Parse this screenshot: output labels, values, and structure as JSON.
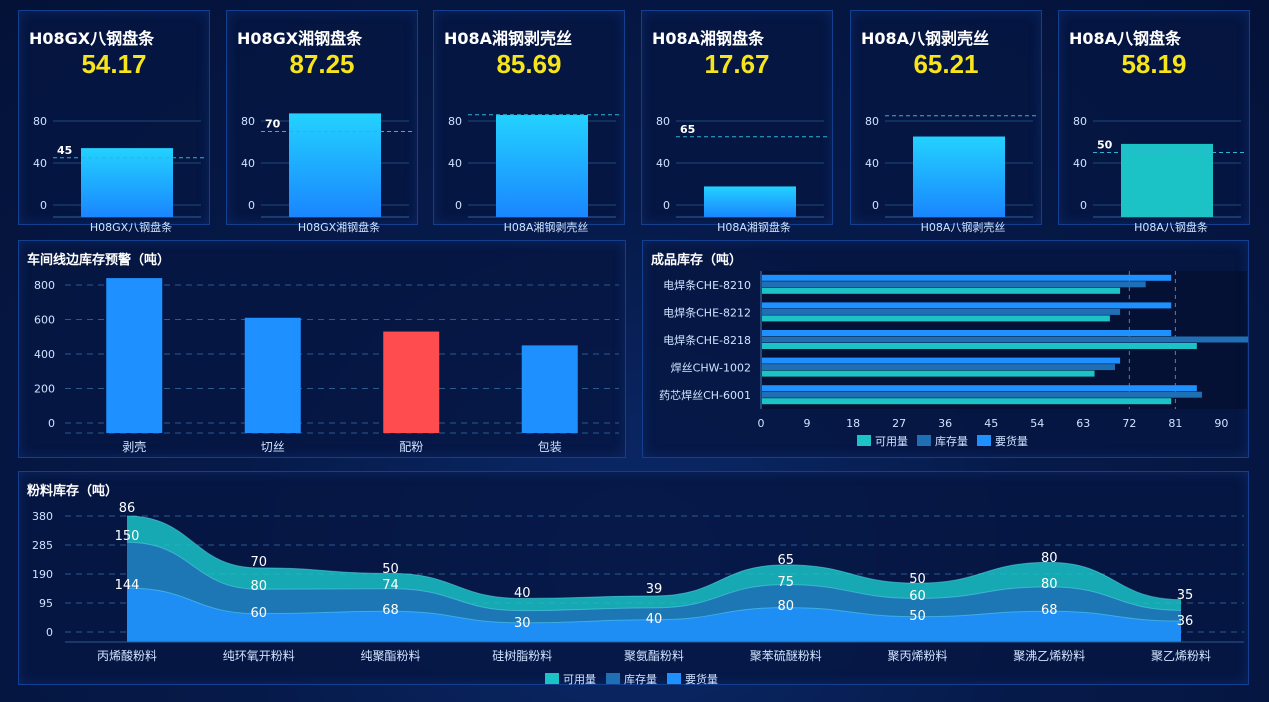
{
  "colors": {
    "accent": "#1e90ff",
    "kpi_value": "#f7e41a",
    "available": "#1bc3c7",
    "stock": "#1f6fb5",
    "demand": "#1e90ff",
    "warning": "#ff4d4f"
  },
  "kpis": [
    {
      "title": "H08GX八钢盘条",
      "value": "54.17",
      "category": "H08GX八钢盘条",
      "bar": 54.17,
      "threshold": 45,
      "threshold_label": "45",
      "yticks": [
        "80",
        "40",
        "0"
      ],
      "bar_style": "gradient"
    },
    {
      "title": "H08GX湘钢盘条",
      "value": "87.25",
      "category": "H08GX湘钢盘条",
      "bar": 87.25,
      "threshold": 70,
      "threshold_label": "70",
      "yticks": [
        "80",
        "40",
        "0"
      ],
      "bar_style": "gradient"
    },
    {
      "title": "H08A湘钢剥壳丝",
      "value": "85.69",
      "category": "H08A湘钢剥壳丝",
      "bar": 85.69,
      "threshold": 86,
      "threshold_label": "",
      "yticks": [
        "80",
        "40",
        "0"
      ],
      "bar_style": "gradient"
    },
    {
      "title": "H08A湘钢盘条",
      "value": "17.67",
      "category": "H08A湘钢盘条",
      "bar": 17.67,
      "threshold": 65,
      "threshold_label": "65",
      "yticks": [
        "80",
        "40",
        "0"
      ],
      "bar_style": "gradient"
    },
    {
      "title": "H08A八钢剥壳丝",
      "value": "65.21",
      "category": "H08A八钢剥壳丝",
      "bar": 65.21,
      "threshold": 85,
      "threshold_label": "",
      "yticks": [
        "80",
        "40",
        "0"
      ],
      "bar_style": "gradient"
    },
    {
      "title": "H08A八钢盘条",
      "value": "58.19",
      "category": "H08A八钢盘条",
      "bar": 58.19,
      "threshold": 50,
      "threshold_label": "50",
      "yticks": [
        "80",
        "40",
        "0"
      ],
      "bar_style": "teal"
    }
  ],
  "workshop": {
    "title": "车间线边库存预警（吨）",
    "chart_data": {
      "type": "bar",
      "categories": [
        "剥壳",
        "切丝",
        "配粉",
        "包装"
      ],
      "values": [
        840,
        610,
        530,
        450
      ],
      "highlight_index": 2,
      "ylim": [
        0,
        800
      ],
      "yticks": [
        "0",
        "200",
        "400",
        "600",
        "800"
      ]
    }
  },
  "finished": {
    "title": "成品库存（吨）",
    "chart_data": {
      "type": "bar",
      "orientation": "horizontal",
      "categories": [
        "电焊条CHE-8210",
        "电焊条CHE-8212",
        "电焊条CHE-8218",
        "焊丝CHW-1002",
        "药芯焊丝CH-6001"
      ],
      "series": [
        {
          "name": "可用量",
          "values": [
            70,
            68,
            85,
            65,
            80
          ]
        },
        {
          "name": "库存量",
          "values": [
            75,
            70,
            95,
            69,
            86
          ]
        },
        {
          "name": "要货量",
          "values": [
            80,
            80,
            80,
            70,
            85
          ]
        }
      ],
      "xlim": [
        0,
        95
      ],
      "xticks": [
        "0",
        "9",
        "18",
        "27",
        "36",
        "45",
        "54",
        "63",
        "72",
        "81",
        "90"
      ],
      "reference_lines": [
        72,
        81
      ],
      "legend": [
        "可用量",
        "库存量",
        "要货量"
      ]
    }
  },
  "powder": {
    "title": "粉料库存（吨）",
    "chart_data": {
      "type": "area",
      "stacked": true,
      "categories": [
        "丙烯酸粉料",
        "纯环氧开粉料",
        "纯聚酯粉料",
        "硅树脂粉料",
        "聚氨酯粉料",
        "聚苯硫醚粉料",
        "聚丙烯粉料",
        "聚沸乙烯粉料",
        "聚乙烯粉料"
      ],
      "series": [
        {
          "name": "要货量",
          "values": [
            144,
            60,
            68,
            30,
            40,
            80,
            50,
            68,
            36
          ]
        },
        {
          "name": "库存量",
          "values": [
            150,
            80,
            74,
            40,
            39,
            75,
            60,
            80,
            35
          ]
        },
        {
          "name": "可用量",
          "values": [
            86,
            70,
            50,
            40,
            39,
            65,
            50,
            80,
            35
          ]
        }
      ],
      "labels": {
        "top": [
          "86",
          "70",
          "50",
          "40",
          "39",
          "65",
          "50",
          "80",
          "35"
        ],
        "middle": [
          "150",
          "80",
          "74",
          "",
          "",
          "75",
          "60",
          "80",
          ""
        ],
        "bottom": [
          "144",
          "60",
          "68",
          "30",
          "40",
          "80",
          "50",
          "68",
          "36"
        ]
      },
      "ylim": [
        0,
        400
      ],
      "yticks": [
        "0",
        "95",
        "190",
        "285",
        "380"
      ],
      "legend": [
        "可用量",
        "库存量",
        "要货量"
      ]
    }
  }
}
